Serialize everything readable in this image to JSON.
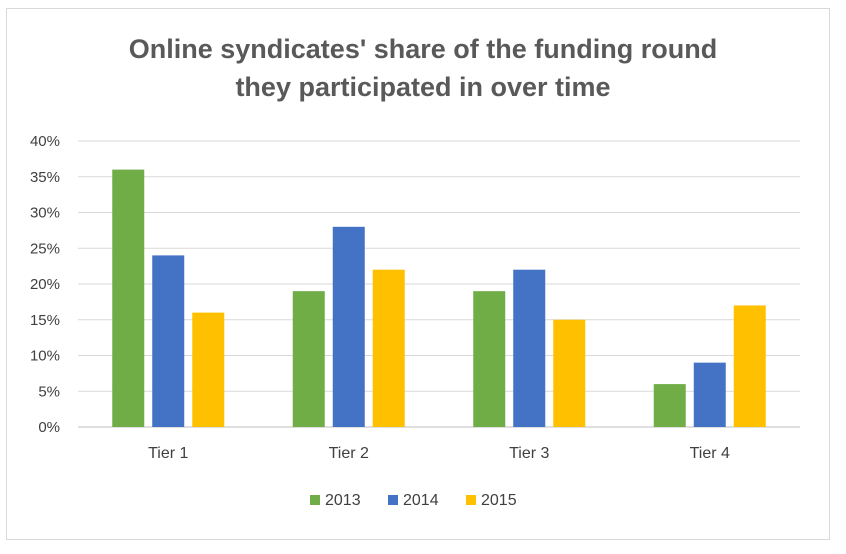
{
  "chart_data": {
    "type": "bar",
    "title_lines": [
      "Online syndicates' share of the funding round",
      "they participated in over time"
    ],
    "categories": [
      "Tier 1",
      "Tier 2",
      "Tier 3",
      "Tier 4"
    ],
    "series": [
      {
        "name": "2013",
        "color": "#70ad47",
        "values": [
          36,
          19,
          19,
          6
        ]
      },
      {
        "name": "2014",
        "color": "#4472c4",
        "values": [
          24,
          28,
          22,
          9
        ]
      },
      {
        "name": "2015",
        "color": "#ffc000",
        "values": [
          16,
          22,
          15,
          17
        ]
      }
    ],
    "y_ticks": [
      "0%",
      "5%",
      "10%",
      "15%",
      "20%",
      "25%",
      "30%",
      "35%",
      "40%"
    ],
    "ylim": [
      0,
      40
    ],
    "grid": true,
    "legend": "bottom"
  }
}
